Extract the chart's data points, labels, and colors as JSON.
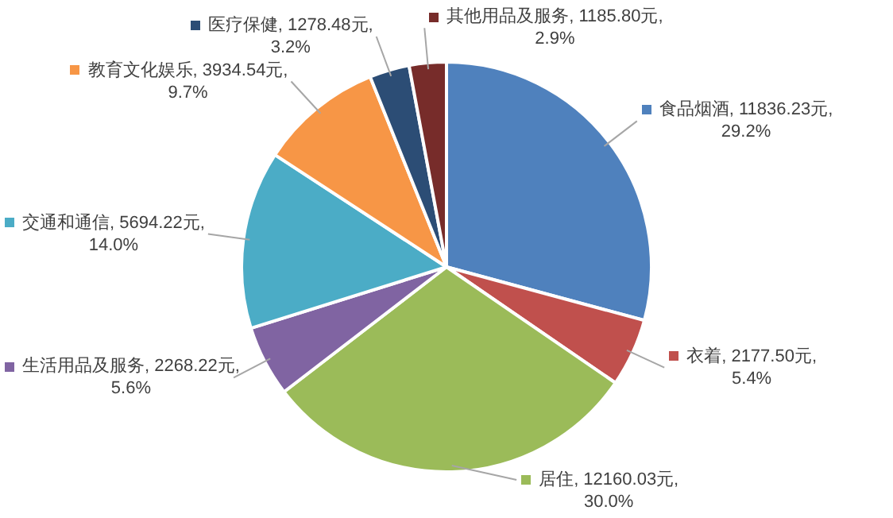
{
  "chart_data": {
    "type": "pie",
    "categories": [
      "食品烟酒",
      "衣着",
      "居住",
      "生活用品及服务",
      "交通和通信",
      "教育文化娱乐",
      "医疗保健",
      "其他用品及服务"
    ],
    "values": [
      11836.23,
      2177.5,
      12160.03,
      2268.22,
      5694.22,
      3934.54,
      1278.48,
      1185.8
    ],
    "colors": [
      "#4f81bd",
      "#c0504d",
      "#9bbb59",
      "#8064a2",
      "#4bacc6",
      "#f79646",
      "#2c4d75",
      "#772c2a"
    ],
    "value_labels": [
      "11836.23元, 29.2%",
      "2177.50元, 5.4%",
      "12160.03元, 30.0%",
      "2268.22元, 5.6%",
      "5694.22元, 14.0%",
      "3934.54元, 9.7%",
      "1278.48元, 3.2%",
      "1185.80元, 2.9%"
    ],
    "legend": "top left"
  }
}
